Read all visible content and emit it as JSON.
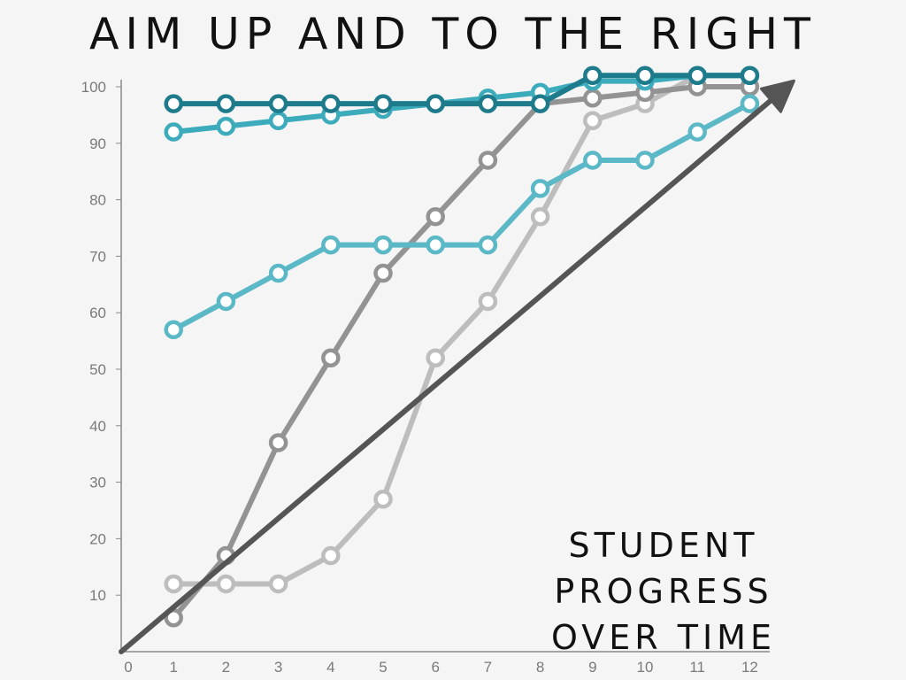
{
  "slide": {
    "title": "AIM UP AND TO THE RIGHT",
    "caption": [
      "STUDENT",
      "PROGRESS",
      "OVER TIME"
    ]
  },
  "chart_data": {
    "type": "line",
    "title": "AIM UP AND TO THE RIGHT",
    "xlabel": "",
    "ylabel": "",
    "x": [
      1,
      2,
      3,
      4,
      5,
      6,
      7,
      8,
      9,
      10,
      11,
      12
    ],
    "xticks": [
      0,
      1,
      2,
      3,
      4,
      5,
      6,
      7,
      8,
      9,
      10,
      11,
      12
    ],
    "yticks": [
      10,
      20,
      30,
      40,
      50,
      60,
      70,
      80,
      90,
      100
    ],
    "xlim": [
      0,
      12
    ],
    "ylim": [
      0,
      100
    ],
    "grid": false,
    "series": [
      {
        "color": "#bdbdbd",
        "values": [
          12,
          12,
          12,
          17,
          27,
          52,
          62,
          77,
          94,
          97,
          102,
          102
        ]
      },
      {
        "color": "#939393",
        "values": [
          6,
          17,
          37,
          52,
          67,
          77,
          87,
          97,
          98,
          99,
          100,
          100
        ]
      },
      {
        "color": "#5bb8c6",
        "values": [
          57,
          62,
          67,
          72,
          72,
          72,
          72,
          82,
          87,
          87,
          92,
          97
        ]
      },
      {
        "color": "#3cabbb",
        "values": [
          92,
          93,
          94,
          95,
          96,
          97,
          98,
          99,
          101,
          101,
          102,
          102
        ]
      },
      {
        "color": "#1e7b8b",
        "values": [
          97,
          97,
          97,
          97,
          97,
          97,
          97,
          97,
          102,
          102,
          102,
          102
        ]
      }
    ],
    "trend_arrow": {
      "color": "#555555",
      "from": [
        0,
        0
      ],
      "to": [
        12,
        102
      ]
    }
  }
}
